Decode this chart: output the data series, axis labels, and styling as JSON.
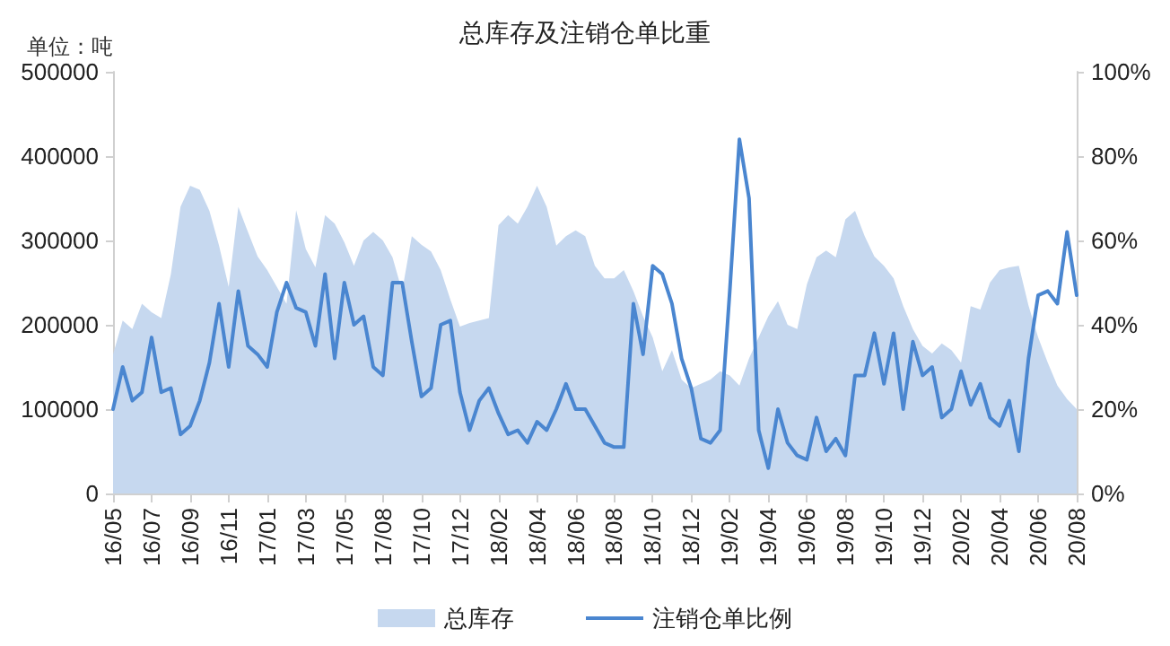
{
  "chart_data": {
    "type": "line",
    "title": "总库存及注销仓单比重",
    "ylabel": "单位：吨",
    "categories": [
      "16/05",
      null,
      null,
      null,
      "16/07",
      null,
      null,
      null,
      "16/09",
      null,
      null,
      null,
      "16/11",
      null,
      null,
      null,
      "17/01",
      null,
      null,
      null,
      "17/03",
      null,
      null,
      null,
      "17/05",
      null,
      null,
      null,
      "17/08",
      null,
      null,
      null,
      "17/10",
      null,
      null,
      null,
      "17/12",
      null,
      null,
      null,
      "18/02",
      null,
      null,
      null,
      "18/04",
      null,
      null,
      null,
      "18/06",
      null,
      null,
      null,
      "18/08",
      null,
      null,
      null,
      "18/10",
      null,
      null,
      null,
      "18/12",
      null,
      null,
      null,
      "19/02",
      null,
      null,
      null,
      "19/04",
      null,
      null,
      null,
      "19/06",
      null,
      null,
      null,
      "19/08",
      null,
      null,
      null,
      "19/10",
      null,
      null,
      null,
      "19/12",
      null,
      null,
      null,
      "20/02",
      null,
      null,
      null,
      "20/04",
      null,
      null,
      null,
      "20/06",
      null,
      null,
      null,
      "20/08"
    ],
    "series": [
      {
        "name": "总库存",
        "type": "area",
        "color": "#c6d8ef",
        "values": [
          165000,
          205000,
          195000,
          225000,
          215000,
          208000,
          260000,
          340000,
          365000,
          360000,
          335000,
          294000,
          245000,
          340000,
          310000,
          281000,
          265000,
          245000,
          225000,
          336000,
          290000,
          268000,
          330000,
          320000,
          298000,
          270000,
          300000,
          310000,
          300000,
          280000,
          240000,
          305000,
          295000,
          287000,
          265000,
          230000,
          198000,
          202000,
          205000,
          208000,
          318000,
          330000,
          320000,
          340000,
          365000,
          340000,
          294000,
          305000,
          312000,
          305000,
          270000,
          255000,
          255000,
          265000,
          240000,
          210000,
          185000,
          145000,
          170000,
          135000,
          125000,
          130000,
          135000,
          145000,
          140000,
          128000,
          160000,
          185000,
          210000,
          228000,
          200000,
          195000,
          248000,
          280000,
          288000,
          280000,
          325000,
          335000,
          305000,
          281000,
          270000,
          255000,
          222000,
          195000,
          175000,
          166000,
          178000,
          170000,
          155000,
          222000,
          218000,
          250000,
          265000,
          268000,
          270000,
          223000,
          185000,
          155000,
          128000,
          112000,
          100000
        ]
      },
      {
        "name": "注销仓单比例",
        "axis": "y2",
        "color": "#4a86d0",
        "values": [
          20,
          30,
          22,
          24,
          37,
          24,
          25,
          14,
          16,
          22,
          31,
          45,
          30,
          48,
          35,
          33,
          30,
          43,
          50,
          44,
          43,
          35,
          52,
          32,
          50,
          40,
          42,
          30,
          28,
          50,
          50,
          36,
          23,
          25,
          40,
          41,
          24,
          15,
          22,
          25,
          19,
          14,
          15,
          12,
          17,
          15,
          20,
          26,
          20,
          20,
          16,
          12,
          11,
          11,
          45,
          33,
          54,
          52,
          45,
          32,
          25,
          13,
          12,
          15,
          48,
          84,
          70,
          15,
          6,
          20,
          12,
          9,
          8,
          18,
          10,
          13,
          9,
          28,
          28,
          38,
          26,
          38,
          20,
          36,
          28,
          30,
          18,
          20,
          29,
          21,
          26,
          18,
          16,
          22,
          10,
          32,
          47,
          48,
          45,
          62,
          47
        ]
      }
    ],
    "ylim": [
      0,
      500000
    ],
    "yticks": [
      0,
      100000,
      200000,
      300000,
      400000,
      500000
    ],
    "y2lim": [
      0,
      100
    ],
    "y2ticks": [
      {
        "value": 0,
        "label": "0%"
      },
      {
        "value": 20,
        "label": "20%"
      },
      {
        "value": 40,
        "label": "40%"
      },
      {
        "value": 60,
        "label": "60%"
      },
      {
        "value": 80,
        "label": "80%"
      },
      {
        "value": 100,
        "label": "100%"
      }
    ],
    "grid": false,
    "legend": "bottom",
    "marker": "none",
    "line_style": "solid"
  }
}
